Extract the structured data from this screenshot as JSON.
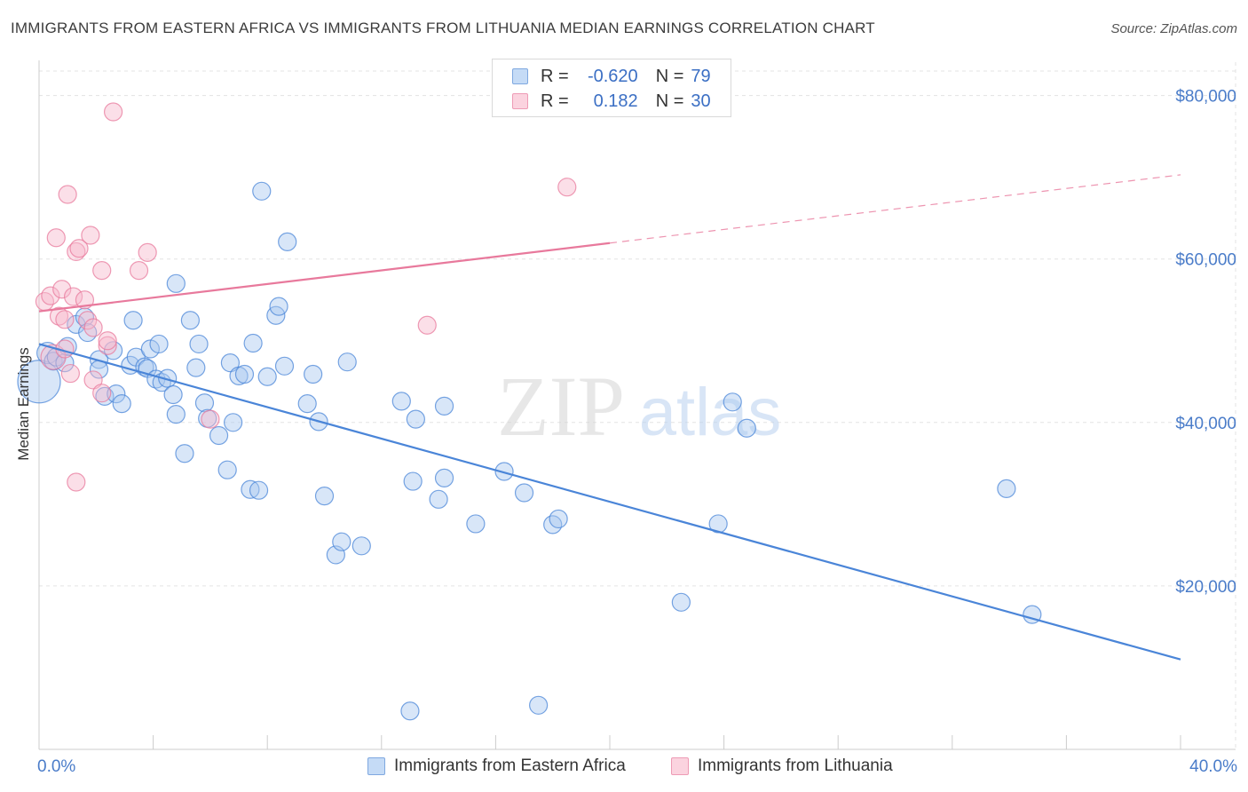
{
  "title": "IMMIGRANTS FROM EASTERN AFRICA VS IMMIGRANTS FROM LITHUANIA MEDIAN EARNINGS CORRELATION CHART",
  "source": "Source: ZipAtlas.com",
  "watermark": {
    "zip": "ZIP",
    "atlas": "atlas"
  },
  "legend": {
    "rows": [
      {
        "r_key": "R =",
        "r_value": "-0.620",
        "n_key": "N =",
        "n_value": "79",
        "color": "#a8c8f0"
      },
      {
        "r_key": "R =",
        "r_value": "0.182",
        "n_key": "N =",
        "n_value": "30",
        "color": "#f6b8cb"
      }
    ]
  },
  "bottom_legend": [
    {
      "label": "Immigrants from Eastern Africa",
      "color": "#a8c8f0"
    },
    {
      "label": "Immigrants from Lithuania",
      "color": "#f6b8cb"
    }
  ],
  "chart_data": {
    "type": "scatter",
    "title": "IMMIGRANTS FROM EASTERN AFRICA VS IMMIGRANTS FROM LITHUANIA MEDIAN EARNINGS CORRELATION CHART",
    "xlabel": "",
    "ylabel": "Median Earnings",
    "xlim": [
      0,
      40
    ],
    "ylim": [
      0,
      83000
    ],
    "x_tick_labels": [
      "0.0%",
      "40.0%"
    ],
    "y_ticks": [
      20000,
      40000,
      60000,
      80000
    ],
    "y_tick_labels": [
      "$20,000",
      "$40,000",
      "$60,000",
      "$80,000"
    ],
    "grid": true,
    "legend_placement": "top-center",
    "series": [
      {
        "name": "Immigrants from Eastern Africa",
        "color": "#4a85d8",
        "fill": "#a8c8f0",
        "trend": {
          "x": [
            0,
            40
          ],
          "y": [
            49600,
            11000
          ],
          "dashed_from": null
        },
        "points": [
          [
            0.0,
            45000,
            24
          ],
          [
            0.3,
            48500,
            12
          ],
          [
            0.5,
            47500,
            10
          ],
          [
            0.6,
            48000,
            10
          ],
          [
            0.9,
            47300,
            10
          ],
          [
            1.0,
            49300,
            10
          ],
          [
            1.3,
            52000,
            10
          ],
          [
            1.6,
            52900,
            10
          ],
          [
            1.7,
            51000,
            10
          ],
          [
            2.1,
            47700,
            10
          ],
          [
            2.1,
            46500,
            10
          ],
          [
            2.3,
            43200,
            10
          ],
          [
            2.6,
            48800,
            10
          ],
          [
            2.7,
            43500,
            10
          ],
          [
            2.9,
            42300,
            10
          ],
          [
            3.2,
            47000,
            10
          ],
          [
            3.3,
            52500,
            10
          ],
          [
            3.4,
            48000,
            10
          ],
          [
            3.7,
            46800,
            10
          ],
          [
            3.8,
            46600,
            10
          ],
          [
            3.9,
            49000,
            10
          ],
          [
            4.1,
            45300,
            10
          ],
          [
            4.2,
            49600,
            10
          ],
          [
            4.3,
            44900,
            10
          ],
          [
            4.5,
            45400,
            10
          ],
          [
            4.7,
            43400,
            10
          ],
          [
            4.8,
            41000,
            10
          ],
          [
            4.8,
            57000,
            10
          ],
          [
            5.1,
            36200,
            10
          ],
          [
            5.3,
            52500,
            10
          ],
          [
            5.5,
            46700,
            10
          ],
          [
            5.6,
            49600,
            10
          ],
          [
            5.8,
            42400,
            10
          ],
          [
            5.9,
            40500,
            10
          ],
          [
            6.3,
            38400,
            10
          ],
          [
            6.6,
            34200,
            10
          ],
          [
            6.7,
            47300,
            10
          ],
          [
            6.8,
            40000,
            10
          ],
          [
            7.0,
            45700,
            10
          ],
          [
            7.2,
            45900,
            10
          ],
          [
            7.4,
            31800,
            10
          ],
          [
            7.5,
            49700,
            10
          ],
          [
            7.7,
            31700,
            10
          ],
          [
            7.8,
            68300,
            10
          ],
          [
            8.0,
            45600,
            10
          ],
          [
            8.3,
            53100,
            10
          ],
          [
            8.4,
            54200,
            10
          ],
          [
            8.6,
            46900,
            10
          ],
          [
            8.7,
            62100,
            10
          ],
          [
            9.4,
            42300,
            10
          ],
          [
            9.6,
            45900,
            10
          ],
          [
            9.8,
            40100,
            10
          ],
          [
            10.0,
            31000,
            10
          ],
          [
            10.4,
            23800,
            10
          ],
          [
            10.6,
            25400,
            10
          ],
          [
            10.8,
            47400,
            10
          ],
          [
            11.3,
            24900,
            10
          ],
          [
            12.7,
            42600,
            10
          ],
          [
            13.0,
            4700,
            10
          ],
          [
            13.1,
            32800,
            10
          ],
          [
            13.2,
            40400,
            10
          ],
          [
            14.0,
            30600,
            10
          ],
          [
            14.2,
            42000,
            10
          ],
          [
            14.2,
            33200,
            10
          ],
          [
            15.3,
            27600,
            10
          ],
          [
            16.3,
            34000,
            10
          ],
          [
            17.0,
            31400,
            10
          ],
          [
            17.5,
            5400,
            10
          ],
          [
            18.0,
            27500,
            10
          ],
          [
            18.2,
            28200,
            10
          ],
          [
            22.5,
            18000,
            10
          ],
          [
            23.8,
            27600,
            10
          ],
          [
            24.3,
            42500,
            10
          ],
          [
            24.8,
            39300,
            10
          ],
          [
            33.9,
            31900,
            10
          ],
          [
            34.8,
            16500,
            10
          ]
        ]
      },
      {
        "name": "Immigrants from Lithuania",
        "color": "#e8799c",
        "fill": "#f6b8cb",
        "trend": {
          "x": [
            0,
            40
          ],
          "y": [
            53600,
            70300
          ],
          "dashed_from": 20
        },
        "points": [
          [
            0.2,
            54800,
            10
          ],
          [
            0.4,
            55500,
            10
          ],
          [
            0.5,
            48000,
            14
          ],
          [
            0.6,
            62600,
            10
          ],
          [
            0.7,
            53000,
            10
          ],
          [
            0.8,
            56300,
            10
          ],
          [
            0.9,
            52600,
            10
          ],
          [
            0.9,
            49000,
            10
          ],
          [
            1.0,
            67900,
            10
          ],
          [
            1.1,
            46000,
            10
          ],
          [
            1.2,
            55400,
            10
          ],
          [
            1.3,
            60900,
            10
          ],
          [
            1.3,
            32700,
            10
          ],
          [
            1.4,
            61300,
            10
          ],
          [
            1.6,
            55000,
            10
          ],
          [
            1.7,
            52500,
            10
          ],
          [
            1.8,
            62900,
            10
          ],
          [
            1.9,
            51600,
            10
          ],
          [
            1.9,
            45200,
            10
          ],
          [
            2.2,
            43600,
            10
          ],
          [
            2.2,
            58600,
            10
          ],
          [
            2.4,
            49400,
            10
          ],
          [
            2.4,
            50000,
            10
          ],
          [
            2.6,
            78000,
            10
          ],
          [
            3.5,
            58600,
            10
          ],
          [
            3.8,
            60800,
            10
          ],
          [
            6.0,
            40400,
            10
          ],
          [
            13.6,
            51900,
            10
          ],
          [
            18.5,
            68800,
            10
          ]
        ]
      }
    ]
  }
}
